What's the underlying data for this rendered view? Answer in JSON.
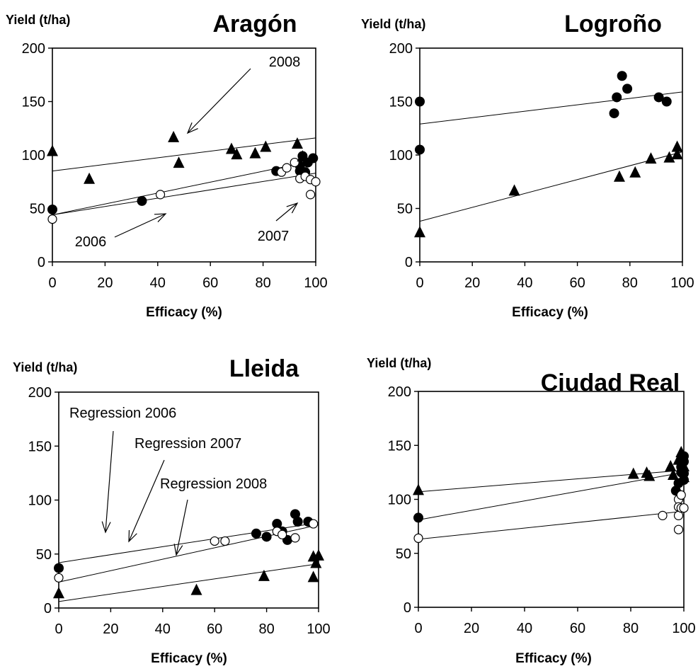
{
  "colors": {
    "marker": "#000000",
    "line": "#000000",
    "background": "#ffffff"
  },
  "chart_data": [
    {
      "type": "scatter",
      "title": "Aragón",
      "xlabel": "Efficacy (%)",
      "ylabel": "Yield (t/ha)",
      "xlim": [
        0,
        100
      ],
      "ylim": [
        0,
        200
      ],
      "xticks": [
        "0",
        "20",
        "40",
        "60",
        "80",
        "100"
      ],
      "yticks": [
        "0",
        "50",
        "100",
        "150",
        "200"
      ],
      "series": [
        {
          "marker": "filled-circle",
          "points": [
            [
              0,
              49
            ],
            [
              34,
              57
            ],
            [
              85,
              85
            ],
            [
              94,
              85
            ],
            [
              94,
              90
            ],
            [
              95,
              99
            ],
            [
              96,
              84
            ],
            [
              97,
              93
            ],
            [
              99,
              97
            ]
          ]
        },
        {
          "marker": "open-circle",
          "points": [
            [
              0,
              40
            ],
            [
              41,
              63
            ],
            [
              87,
              84
            ],
            [
              89,
              88
            ],
            [
              92,
              93
            ],
            [
              94,
              78
            ],
            [
              96,
              80
            ],
            [
              98,
              63
            ],
            [
              98,
              77
            ],
            [
              100,
              75
            ]
          ]
        },
        {
          "marker": "filled-triangle",
          "points": [
            [
              0,
              103
            ],
            [
              14,
              77
            ],
            [
              46,
              116
            ],
            [
              48,
              92
            ],
            [
              68,
              105
            ],
            [
              70,
              100
            ],
            [
              77,
              101
            ],
            [
              81,
              107
            ],
            [
              93,
              110
            ],
            [
              95,
              98
            ]
          ]
        }
      ],
      "regression": [
        {
          "from": [
            0,
            44
          ],
          "to": [
            100,
            95
          ]
        },
        {
          "from": [
            0,
            44
          ],
          "to": [
            100,
            83
          ]
        },
        {
          "from": [
            0,
            85
          ],
          "to": [
            100,
            116
          ]
        }
      ],
      "annotations": [
        "2008",
        "2006",
        "2007"
      ]
    },
    {
      "type": "scatter",
      "title": "Logroño",
      "xlabel": "Efficacy (%)",
      "ylabel": "Yield (t/ha)",
      "xlim": [
        0,
        100
      ],
      "ylim": [
        0,
        200
      ],
      "xticks": [
        "0",
        "20",
        "40",
        "60",
        "80",
        "100"
      ],
      "yticks": [
        "0",
        "50",
        "100",
        "150",
        "200"
      ],
      "series": [
        {
          "marker": "filled-circle",
          "points": [
            [
              0,
              150
            ],
            [
              0,
              105
            ],
            [
              74,
              139
            ],
            [
              75,
              154
            ],
            [
              77,
              174
            ],
            [
              79,
              162
            ],
            [
              91,
              154
            ],
            [
              94,
              150
            ]
          ]
        },
        {
          "marker": "filled-triangle",
          "points": [
            [
              0,
              27
            ],
            [
              36,
              66
            ],
            [
              76,
              79
            ],
            [
              82,
              83
            ],
            [
              88,
              96
            ],
            [
              95,
              97
            ],
            [
              98,
              107
            ],
            [
              98,
              100
            ]
          ]
        }
      ],
      "regression": [
        {
          "from": [
            0,
            129
          ],
          "to": [
            100,
            159
          ]
        },
        {
          "from": [
            0,
            38
          ],
          "to": [
            100,
            103
          ]
        }
      ],
      "annotations": []
    },
    {
      "type": "scatter",
      "title": "Lleida",
      "xlabel": "Efficacy (%)",
      "ylabel": "Yield (t/ha)",
      "xlim": [
        0,
        100
      ],
      "ylim": [
        0,
        200
      ],
      "xticks": [
        "0",
        "20",
        "40",
        "60",
        "80",
        "100"
      ],
      "yticks": [
        "0",
        "50",
        "100",
        "150",
        "200"
      ],
      "series": [
        {
          "marker": "filled-circle",
          "points": [
            [
              0,
              37
            ],
            [
              76,
              69
            ],
            [
              80,
              66
            ],
            [
              84,
              78
            ],
            [
              86,
              71
            ],
            [
              88,
              63
            ],
            [
              91,
              87
            ],
            [
              92,
              80
            ],
            [
              96,
              80
            ]
          ]
        },
        {
          "marker": "open-circle",
          "points": [
            [
              0,
              28
            ],
            [
              60,
              62
            ],
            [
              64,
              62
            ],
            [
              84,
              71
            ],
            [
              86,
              68
            ],
            [
              91,
              65
            ],
            [
              98,
              78
            ]
          ]
        },
        {
          "marker": "filled-triangle",
          "points": [
            [
              0,
              13
            ],
            [
              53,
              16
            ],
            [
              79,
              29
            ],
            [
              98,
              28
            ],
            [
              98,
              47
            ],
            [
              99,
              41
            ],
            [
              100,
              48
            ]
          ]
        }
      ],
      "regression": [
        {
          "from": [
            0,
            42
          ],
          "to": [
            100,
            79
          ]
        },
        {
          "from": [
            0,
            24
          ],
          "to": [
            100,
            77
          ]
        },
        {
          "from": [
            0,
            6
          ],
          "to": [
            100,
            41
          ]
        }
      ],
      "annotations": [
        "Regression 2006",
        "Regression 2007",
        "Regression 2008"
      ]
    },
    {
      "type": "scatter",
      "title": "Ciudad Real",
      "xlabel": "Efficacy (%)",
      "ylabel": "Yield (t/ha)",
      "xlim": [
        0,
        100
      ],
      "ylim": [
        0,
        200
      ],
      "xticks": [
        "0",
        "20",
        "40",
        "60",
        "80",
        "100"
      ],
      "yticks": [
        "0",
        "50",
        "100",
        "150",
        "200"
      ],
      "series": [
        {
          "marker": "filled-circle",
          "points": [
            [
              0,
              83
            ],
            [
              97,
              108
            ],
            [
              98,
              115
            ],
            [
              99,
              125
            ],
            [
              99,
              130
            ],
            [
              100,
              135
            ],
            [
              100,
              140
            ],
            [
              100,
              124
            ],
            [
              100,
              118
            ]
          ]
        },
        {
          "marker": "open-circle",
          "points": [
            [
              0,
              64
            ],
            [
              92,
              85
            ],
            [
              98,
              100
            ],
            [
              98,
              93
            ],
            [
              98,
              85
            ],
            [
              98,
              72
            ],
            [
              99,
              92
            ],
            [
              99,
              104
            ],
            [
              100,
              92
            ]
          ]
        },
        {
          "marker": "filled-triangle",
          "points": [
            [
              0,
              108
            ],
            [
              81,
              123
            ],
            [
              86,
              124
            ],
            [
              87,
              121
            ],
            [
              95,
              130
            ],
            [
              96,
              122
            ],
            [
              98,
              136
            ],
            [
              99,
              143
            ],
            [
              100,
              130
            ],
            [
              100,
              120
            ]
          ]
        }
      ],
      "regression": [
        {
          "from": [
            0,
            107
          ],
          "to": [
            100,
            127
          ]
        },
        {
          "from": [
            0,
            81
          ],
          "to": [
            100,
            125
          ]
        },
        {
          "from": [
            0,
            63
          ],
          "to": [
            100,
            89
          ]
        }
      ],
      "annotations": []
    }
  ]
}
